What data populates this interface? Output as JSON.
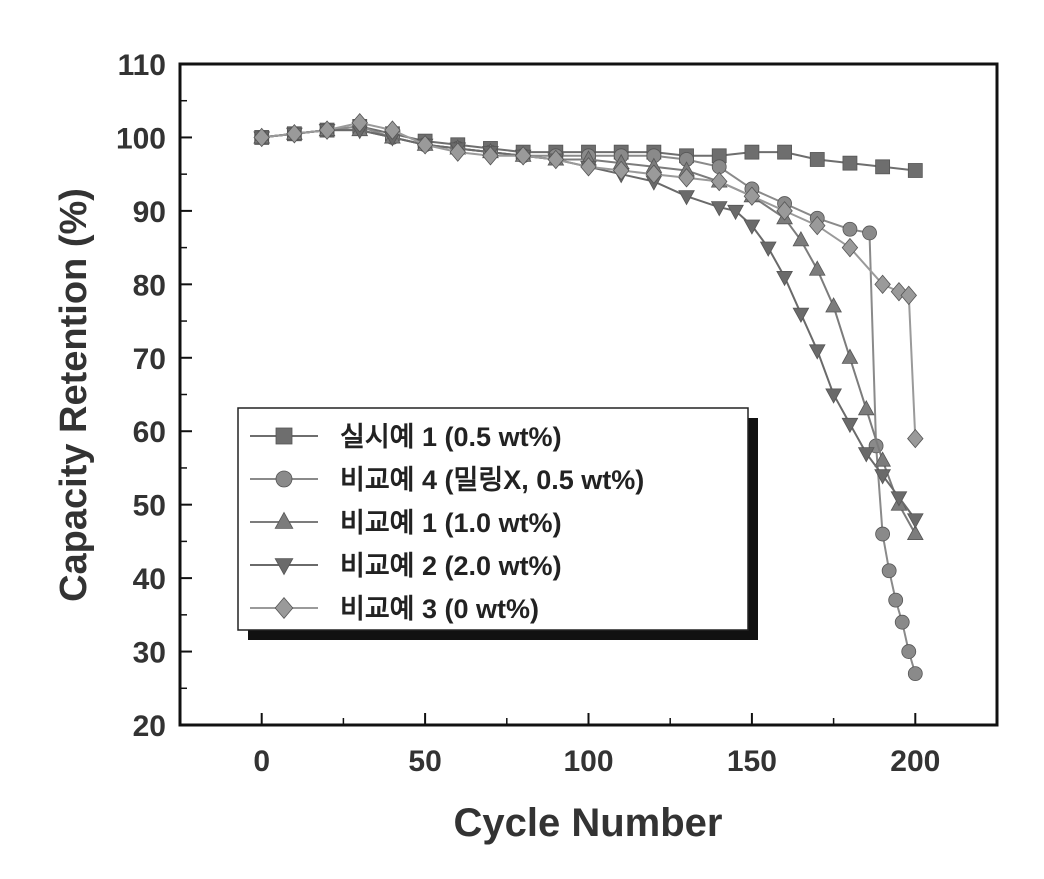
{
  "chart_data": {
    "type": "line",
    "xlabel": "Cycle Number",
    "ylabel": "Capacity Retention (%)",
    "xlim": [
      -25,
      225
    ],
    "ylim": [
      20,
      110
    ],
    "xticks": [
      "0",
      "50",
      "100",
      "150",
      "200"
    ],
    "yticks": [
      "20",
      "30",
      "40",
      "50",
      "60",
      "70",
      "80",
      "90",
      "100",
      "110"
    ],
    "legend_position": "center-left",
    "series": [
      {
        "name": "실시예 1 (0.5 wt%)",
        "marker": "square",
        "color": "#6e6e6e",
        "x": [
          0,
          10,
          20,
          30,
          40,
          50,
          60,
          70,
          80,
          90,
          100,
          110,
          120,
          130,
          140,
          150,
          160,
          170,
          180,
          190,
          200
        ],
        "values": [
          100,
          100.5,
          101,
          101.5,
          100.5,
          99.5,
          99,
          98.5,
          98,
          98,
          98,
          98,
          98,
          97.5,
          97.5,
          98,
          98,
          97,
          96.5,
          96,
          95.5
        ]
      },
      {
        "name": "비교예 4 (밀링X, 0.5 wt%)",
        "marker": "circle",
        "color": "#8a8a8a",
        "x": [
          0,
          10,
          20,
          30,
          40,
          50,
          60,
          70,
          80,
          90,
          100,
          110,
          120,
          130,
          140,
          150,
          160,
          170,
          180,
          186,
          188,
          190,
          192,
          194,
          196,
          198,
          200
        ],
        "values": [
          100,
          100.5,
          101,
          101.5,
          100,
          99,
          98.5,
          98,
          97.5,
          97.5,
          97.5,
          97.5,
          97.5,
          97,
          96,
          93,
          91,
          89,
          87.5,
          87,
          58,
          46,
          41,
          37,
          34,
          30,
          27
        ]
      },
      {
        "name": "비교예 1 (1.0 wt%)",
        "marker": "triangle-up",
        "color": "#7c7c7c",
        "x": [
          0,
          10,
          20,
          30,
          40,
          50,
          60,
          70,
          80,
          90,
          100,
          110,
          120,
          130,
          140,
          150,
          160,
          165,
          170,
          175,
          180,
          185,
          190,
          195,
          200
        ],
        "values": [
          100,
          100.5,
          101,
          101,
          100,
          99,
          98.5,
          98,
          97.5,
          97,
          97,
          96.5,
          96,
          95.5,
          94,
          92,
          89,
          86,
          82,
          77,
          70,
          63,
          56,
          50,
          46
        ]
      },
      {
        "name": "비교예 2 (2.0 wt%)",
        "marker": "triangle-down",
        "color": "#6a6a6a",
        "x": [
          0,
          10,
          20,
          30,
          40,
          50,
          60,
          70,
          80,
          90,
          100,
          110,
          120,
          130,
          140,
          145,
          150,
          155,
          160,
          165,
          170,
          175,
          180,
          185,
          190,
          195,
          200
        ],
        "values": [
          100,
          100.5,
          101,
          101,
          100,
          99,
          98.5,
          98,
          97.5,
          97,
          96,
          95,
          94,
          92,
          90.5,
          90,
          88,
          85,
          81,
          76,
          71,
          65,
          61,
          57,
          54,
          51,
          48
        ]
      },
      {
        "name": "비교예 3 (0 wt%)",
        "marker": "diamond",
        "color": "#9a9a9a",
        "x": [
          0,
          10,
          20,
          30,
          40,
          50,
          60,
          70,
          80,
          90,
          100,
          110,
          120,
          130,
          140,
          150,
          160,
          170,
          180,
          190,
          195,
          198,
          200
        ],
        "values": [
          100,
          100.5,
          101,
          102,
          101,
          99,
          98,
          97.5,
          97.5,
          97,
          96,
          95.5,
          95,
          94.5,
          94,
          92,
          90,
          88,
          85,
          80,
          79,
          78.5,
          59
        ]
      }
    ]
  }
}
